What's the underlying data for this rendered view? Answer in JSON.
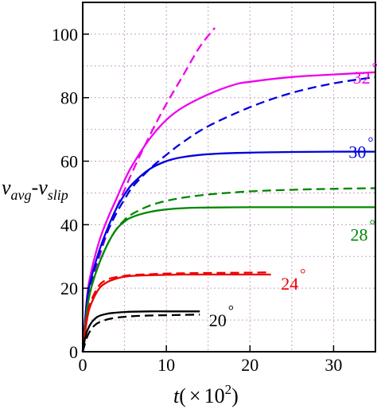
{
  "chart_data": {
    "type": "line",
    "title": "",
    "xlabel": {
      "t": "t",
      "open": "(",
      "times": "×",
      "base": "10",
      "exp": "2",
      "close": ")"
    },
    "ylabel": {
      "v1": "v",
      "sub1": "avg",
      "dash": "-",
      "v2": "v",
      "sub2": "slip"
    },
    "xlim": [
      0,
      35
    ],
    "ylim": [
      0,
      110
    ],
    "xticks": [
      0,
      10,
      20,
      30
    ],
    "yticks": [
      0,
      20,
      40,
      60,
      80,
      100
    ],
    "grid": true,
    "series": [
      {
        "group": "32",
        "style": "solid",
        "color": "#ee00ee",
        "x": [
          0,
          0.5,
          1,
          2,
          3,
          4,
          5,
          6,
          8,
          10,
          12,
          15,
          18,
          20,
          25,
          30,
          35
        ],
        "y": [
          0,
          17,
          25,
          35,
          42,
          48,
          54,
          59,
          67,
          73,
          77,
          81,
          84,
          85,
          86.5,
          87.3,
          88
        ]
      },
      {
        "group": "32",
        "style": "dashed",
        "color": "#ee00ee",
        "x": [
          0,
          0.5,
          1,
          2,
          3,
          4,
          5,
          6,
          8,
          10,
          12,
          14,
          15.8
        ],
        "y": [
          0,
          14,
          21,
          30,
          38,
          45,
          51,
          57,
          68,
          78,
          87,
          96,
          102
        ]
      },
      {
        "group": "30",
        "style": "solid",
        "color": "#0000dd",
        "x": [
          0,
          0.5,
          1,
          2,
          3,
          4,
          5,
          6,
          8,
          10,
          12,
          15,
          20,
          25,
          30,
          35
        ],
        "y": [
          0,
          16,
          23,
          32,
          39,
          45,
          49.5,
          53,
          57.5,
          60,
          61.3,
          62.2,
          62.7,
          62.9,
          63,
          63
        ]
      },
      {
        "group": "30",
        "style": "dashed",
        "color": "#0000dd",
        "x": [
          0,
          0.5,
          1,
          2,
          3,
          4,
          5,
          6,
          8,
          10,
          12,
          15,
          20,
          25,
          30,
          35
        ],
        "y": [
          0,
          15,
          22,
          31,
          38,
          43.5,
          48,
          52,
          57.5,
          62,
          66,
          71,
          77,
          81.5,
          84.5,
          86.5
        ]
      },
      {
        "group": "28",
        "style": "solid",
        "color": "#008800",
        "x": [
          0,
          0.5,
          1,
          2,
          3,
          4,
          5,
          6,
          8,
          10,
          12,
          15,
          20,
          25,
          30,
          35
        ],
        "y": [
          0,
          13,
          20,
          28,
          34,
          38.5,
          41,
          42.5,
          44,
          44.8,
          45.2,
          45.4,
          45.5,
          45.5,
          45.5,
          45.5
        ]
      },
      {
        "group": "28",
        "style": "dashed",
        "color": "#008800",
        "x": [
          0,
          0.5,
          1,
          2,
          3,
          4,
          5,
          6,
          8,
          10,
          12,
          15,
          20,
          25,
          30,
          35
        ],
        "y": [
          0,
          13,
          20,
          28,
          34,
          38.5,
          41.5,
          43.5,
          46,
          47.5,
          48.5,
          49.5,
          50.5,
          51,
          51.3,
          51.5
        ]
      },
      {
        "group": "24",
        "style": "solid",
        "color": "#ee0000",
        "x": [
          0,
          0.5,
          1,
          2,
          3,
          4,
          5,
          6,
          8,
          10,
          12,
          15,
          20,
          22.5
        ],
        "y": [
          0,
          10,
          15,
          20,
          22,
          23,
          23.6,
          23.9,
          24.1,
          24.2,
          24.3,
          24.3,
          24.3,
          24.3
        ]
      },
      {
        "group": "24",
        "style": "dashed",
        "color": "#ee0000",
        "x": [
          0,
          0.5,
          1,
          2,
          3,
          4,
          5,
          6,
          8,
          10,
          12,
          15,
          20,
          22.5
        ],
        "y": [
          0,
          11,
          16,
          21,
          22.8,
          23.5,
          23.9,
          24.2,
          24.4,
          24.6,
          24.7,
          24.8,
          24.9,
          25
        ]
      },
      {
        "group": "20",
        "style": "solid",
        "color": "#000000",
        "x": [
          0,
          0.3,
          0.6,
          1,
          1.5,
          2,
          3,
          4,
          5,
          6,
          8,
          10,
          12,
          14
        ],
        "y": [
          0,
          4.5,
          7,
          9,
          10.5,
          11.3,
          12,
          12.3,
          12.5,
          12.6,
          12.7,
          12.7,
          12.7,
          12.7
        ]
      },
      {
        "group": "20",
        "style": "dashed",
        "color": "#000000",
        "x": [
          0,
          0.5,
          1,
          1.5,
          2,
          3,
          4,
          5,
          6,
          8,
          10,
          12,
          14
        ],
        "y": [
          0,
          4.5,
          7,
          8.5,
          9.3,
          10.2,
          10.7,
          11.0,
          11.2,
          11.4,
          11.5,
          11.6,
          11.7
        ]
      }
    ],
    "annotations": [
      {
        "text": "32",
        "unit": "°",
        "color": "#ee00ee",
        "x": 32.3,
        "y": 84.5
      },
      {
        "text": "30",
        "unit": "°",
        "color": "#0000dd",
        "x": 31.8,
        "y": 61
      },
      {
        "text": "28",
        "unit": "°",
        "color": "#008800",
        "x": 32,
        "y": 35
      },
      {
        "text": "24",
        "unit": "°",
        "color": "#ee0000",
        "x": 23.7,
        "y": 19.5
      },
      {
        "text": "20",
        "unit": "°",
        "color": "#000000",
        "x": 15.1,
        "y": 8
      }
    ]
  }
}
